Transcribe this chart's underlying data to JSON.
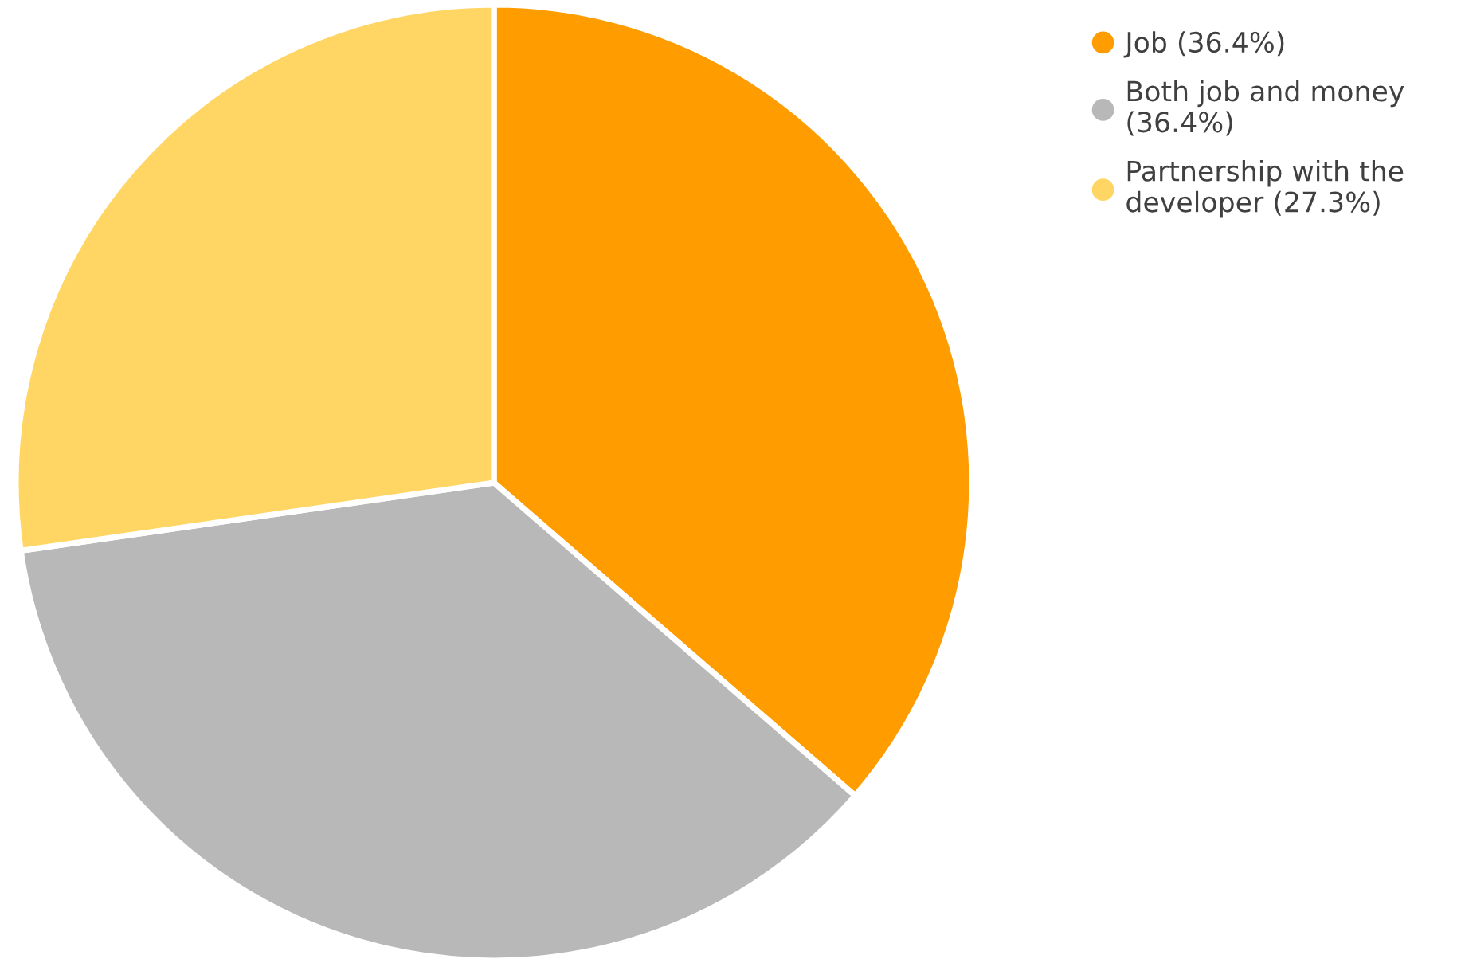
{
  "chart_data": {
    "type": "pie",
    "categories": [
      "Job (36.4%)",
      "Both job and money (36.4%)",
      "Partnership with the developer (27.3%)"
    ],
    "values": [
      36.4,
      36.4,
      27.3
    ],
    "colors": [
      "#ff9c00",
      "#b8b8b8",
      "#ffd563"
    ],
    "legend": "top right"
  }
}
